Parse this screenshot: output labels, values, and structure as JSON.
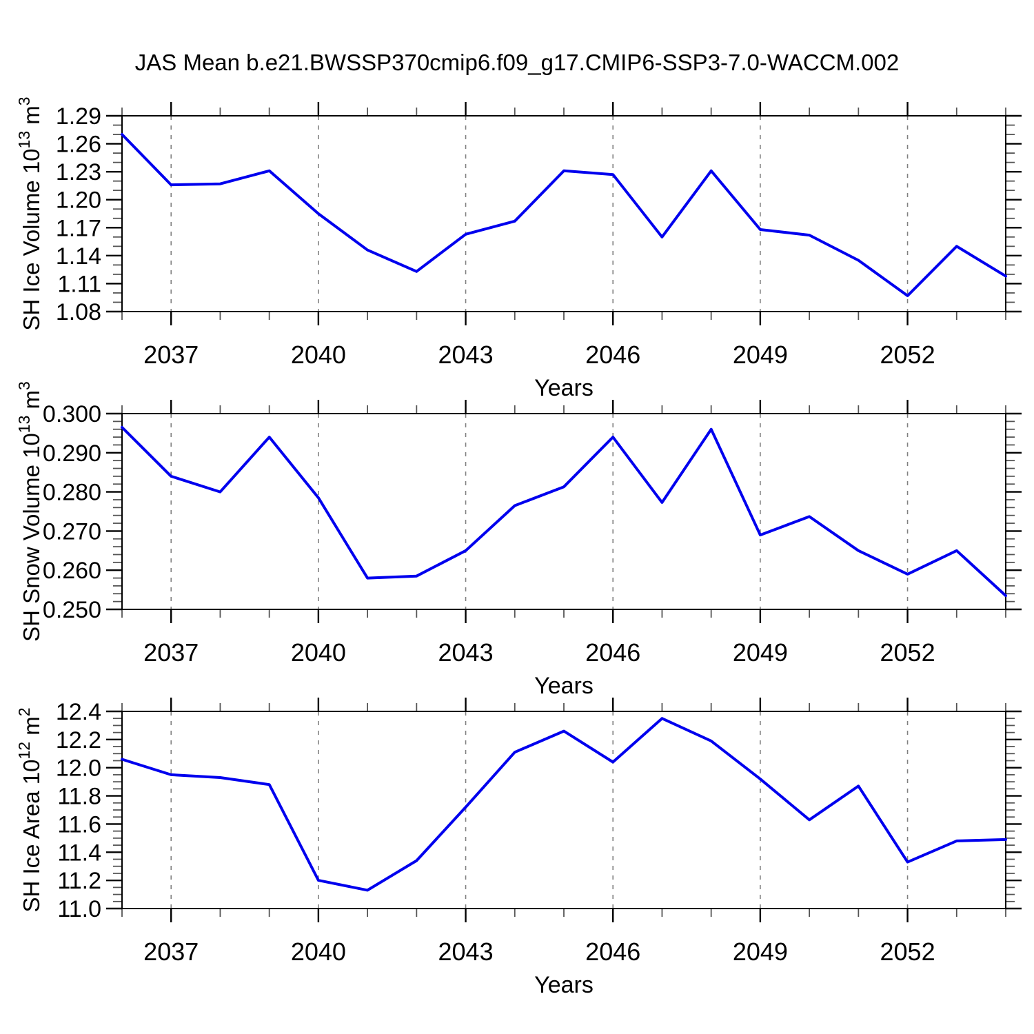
{
  "title": "JAS Mean b.e21.BWSSP370cmip6.f09_g17.CMIP6-SSP3-7.0-WACCM.002",
  "x_axis": {
    "label": "Years",
    "start": 2036,
    "end": 2054,
    "major_ticks": [
      2037,
      2040,
      2043,
      2046,
      2049,
      2052
    ],
    "minor_step": 1
  },
  "style": {
    "line_color": "#0000ee",
    "grid_color": "#808080",
    "axis_color": "#000000",
    "minor_tick_color": "#555555"
  },
  "chart_data": [
    {
      "type": "line",
      "id": "sh-ice-volume",
      "ylabel": "SH Ice Volume 10^13 m^3",
      "ylabel_parts": [
        {
          "text": "SH Ice Volume 10"
        },
        {
          "sup": "13"
        },
        {
          "text": " m"
        },
        {
          "sup": "3"
        }
      ],
      "xlabel": "Years",
      "ylim": [
        1.08,
        1.29
      ],
      "y_major_step": 0.03,
      "y_minor_step": 0.01,
      "y_decimals": 2,
      "grid": "dashed-vertical",
      "legend": "none",
      "x": [
        2036,
        2037,
        2038,
        2039,
        2040,
        2041,
        2042,
        2043,
        2044,
        2045,
        2046,
        2047,
        2048,
        2049,
        2050,
        2051,
        2052,
        2053,
        2054
      ],
      "values": [
        1.27,
        1.216,
        1.217,
        1.231,
        1.185,
        1.146,
        1.123,
        1.163,
        1.177,
        1.231,
        1.227,
        1.16,
        1.231,
        1.168,
        1.162,
        1.135,
        1.097,
        1.15,
        1.118
      ]
    },
    {
      "type": "line",
      "id": "sh-snow-volume",
      "ylabel": "SH Snow Volume 10^13 m^3",
      "ylabel_parts": [
        {
          "text": "SH Snow Volume 10"
        },
        {
          "sup": "13"
        },
        {
          "text": " m"
        },
        {
          "sup": "3"
        }
      ],
      "xlabel": "Years",
      "ylim": [
        0.25,
        0.3
      ],
      "y_major_step": 0.01,
      "y_minor_step": 0.002,
      "y_decimals": 3,
      "grid": "dashed-vertical",
      "legend": "none",
      "x": [
        2036,
        2037,
        2038,
        2039,
        2040,
        2041,
        2042,
        2043,
        2044,
        2045,
        2046,
        2047,
        2048,
        2049,
        2050,
        2051,
        2052,
        2053,
        2054
      ],
      "values": [
        0.2965,
        0.284,
        0.28,
        0.294,
        0.2785,
        0.258,
        0.2585,
        0.265,
        0.2765,
        0.2813,
        0.294,
        0.2773,
        0.296,
        0.269,
        0.2737,
        0.265,
        0.259,
        0.265,
        0.2535
      ]
    },
    {
      "type": "line",
      "id": "sh-ice-area",
      "ylabel": "SH Ice Area 10^12 m^2",
      "ylabel_parts": [
        {
          "text": "SH Ice Area 10"
        },
        {
          "sup": "12"
        },
        {
          "text": " m"
        },
        {
          "sup": "2"
        }
      ],
      "xlabel": "Years",
      "ylim": [
        11.0,
        12.4
      ],
      "y_major_step": 0.2,
      "y_minor_step": 0.05,
      "y_decimals": 1,
      "grid": "dashed-vertical",
      "legend": "none",
      "x": [
        2036,
        2037,
        2038,
        2039,
        2040,
        2041,
        2042,
        2043,
        2044,
        2045,
        2046,
        2047,
        2048,
        2049,
        2050,
        2051,
        2052,
        2053,
        2054
      ],
      "values": [
        12.06,
        11.95,
        11.93,
        11.88,
        11.2,
        11.13,
        11.34,
        11.72,
        12.11,
        12.26,
        12.04,
        12.35,
        12.19,
        11.92,
        11.63,
        11.87,
        11.33,
        11.48,
        11.49
      ]
    }
  ]
}
